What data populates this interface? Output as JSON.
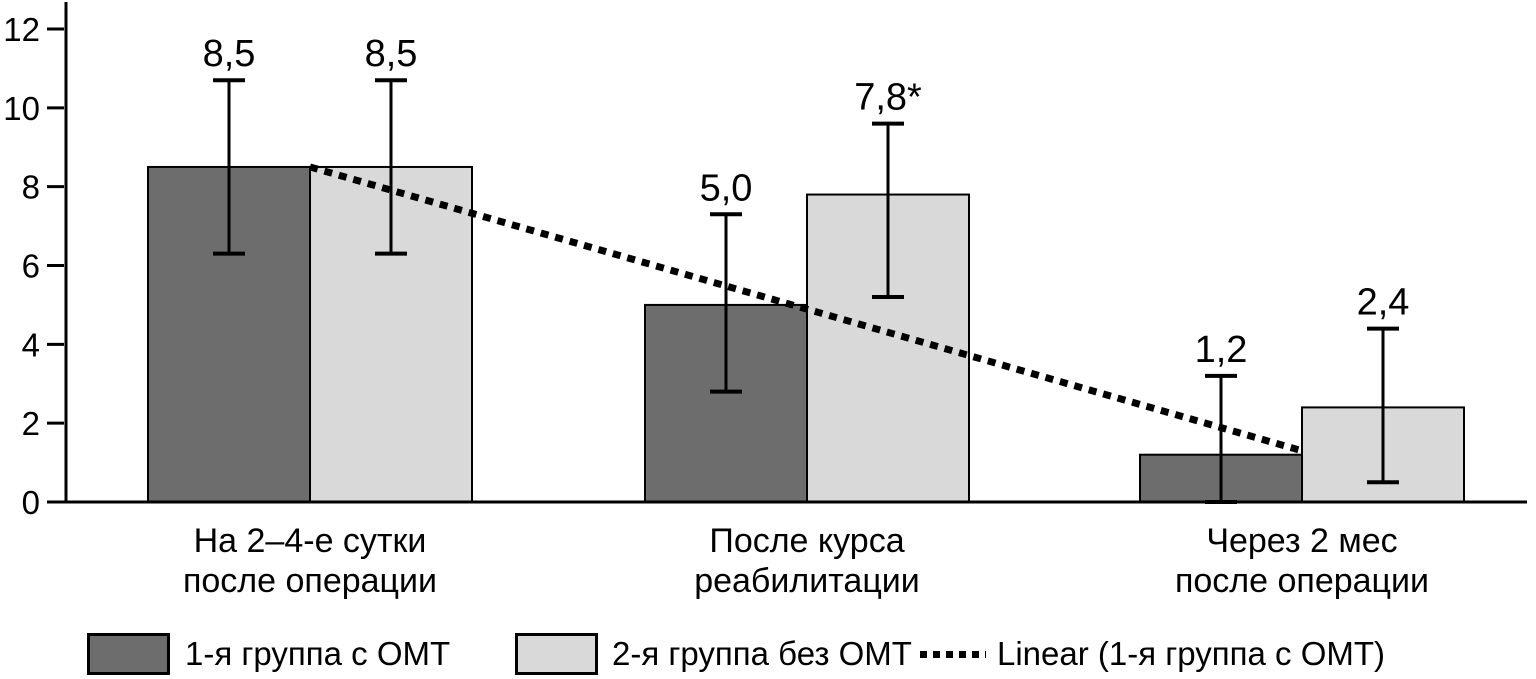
{
  "chart_data": {
    "type": "bar",
    "title": "",
    "xlabel": "",
    "ylabel": "",
    "grid": false,
    "legend_position": "bottom",
    "y_axis": {
      "min": 0,
      "max": 12,
      "tick_step": 2,
      "ticks": [
        0,
        2,
        4,
        6,
        8,
        10,
        12
      ]
    },
    "categories": [
      [
        "На 2–4-е сутки",
        "после операции"
      ],
      [
        "После курса",
        "реабилитации"
      ],
      [
        "Через 2 мес",
        "после операции"
      ]
    ],
    "series": [
      {
        "name": "1-я группа с ОМТ",
        "color": "#6d6d6d",
        "values": [
          8.5,
          5.0,
          1.2
        ],
        "labels": [
          "8,5",
          "5,0",
          "1,2"
        ],
        "error_low": [
          6.3,
          2.8,
          0.0
        ],
        "error_high": [
          10.7,
          7.3,
          3.2
        ]
      },
      {
        "name": "2-я группа без ОМТ",
        "color": "#d9d9d9",
        "values": [
          8.5,
          7.8,
          2.4
        ],
        "labels": [
          "8,5",
          "7,8*",
          "2,4"
        ],
        "error_low": [
          6.3,
          5.2,
          0.5
        ],
        "error_high": [
          10.7,
          9.6,
          4.4
        ]
      }
    ],
    "trendline": {
      "name": "Linear (1-я группа с ОМТ)",
      "series_ref": "1-я группа с ОМТ",
      "style": "dotted",
      "color": "#000000",
      "from_value": 8.5,
      "to_value": 1.3
    },
    "axis_color": "#000000",
    "text_color": "#000000"
  }
}
